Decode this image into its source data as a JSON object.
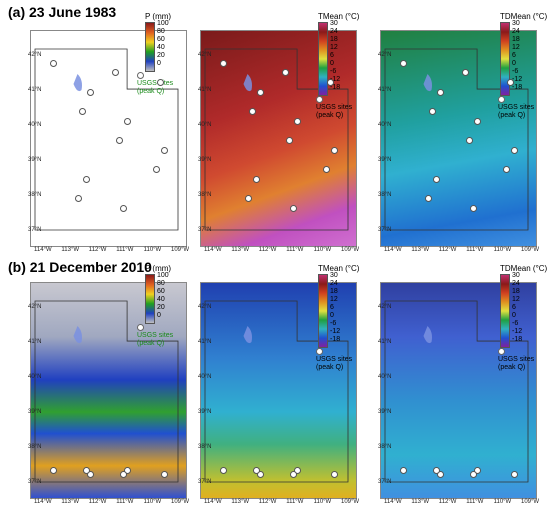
{
  "rows": [
    {
      "label": "(a)  23 June 1983"
    },
    {
      "label": "(b)  21 December 2010"
    }
  ],
  "latitudes": [
    "42°N",
    "41°N",
    "40°N",
    "39°N",
    "38°N",
    "37°N"
  ],
  "longitudes": [
    "114°W",
    "113°W",
    "112°W",
    "111°W",
    "110°W",
    "109°W"
  ],
  "panels": [
    {
      "title": "P (mm)",
      "ticks": [
        "100",
        "80",
        "60",
        "40",
        "20",
        "0"
      ],
      "usgs": "USGS sites\n(peak Q)",
      "usgs_color": "#1a8a1a"
    },
    {
      "title": "TMean (°C)",
      "ticks": [
        "30",
        "24",
        "18",
        "12",
        "6",
        "0",
        "-6",
        "-12",
        "-18"
      ],
      "usgs": "USGS sites\n(peak Q)",
      "usgs_color": "#000000"
    },
    {
      "title": "TDMean (°C)",
      "ticks": [
        "30",
        "24",
        "18",
        "12",
        "6",
        "0",
        "-6",
        "-12",
        "-18"
      ],
      "usgs": "USGS sites\n(peak Q)",
      "usgs_color": "#000000"
    }
  ],
  "colors": {
    "precip_scale": [
      "#8b1a1a",
      "#e06020",
      "#f0d020",
      "#20a020",
      "#2040c0",
      "#c0c0c0"
    ],
    "temp_scale": [
      "#c03070",
      "#8a1a1a",
      "#d04020",
      "#e09020",
      "#e0e040",
      "#20a040",
      "#30b0c0",
      "#2050d0",
      "#8020a0"
    ]
  }
}
